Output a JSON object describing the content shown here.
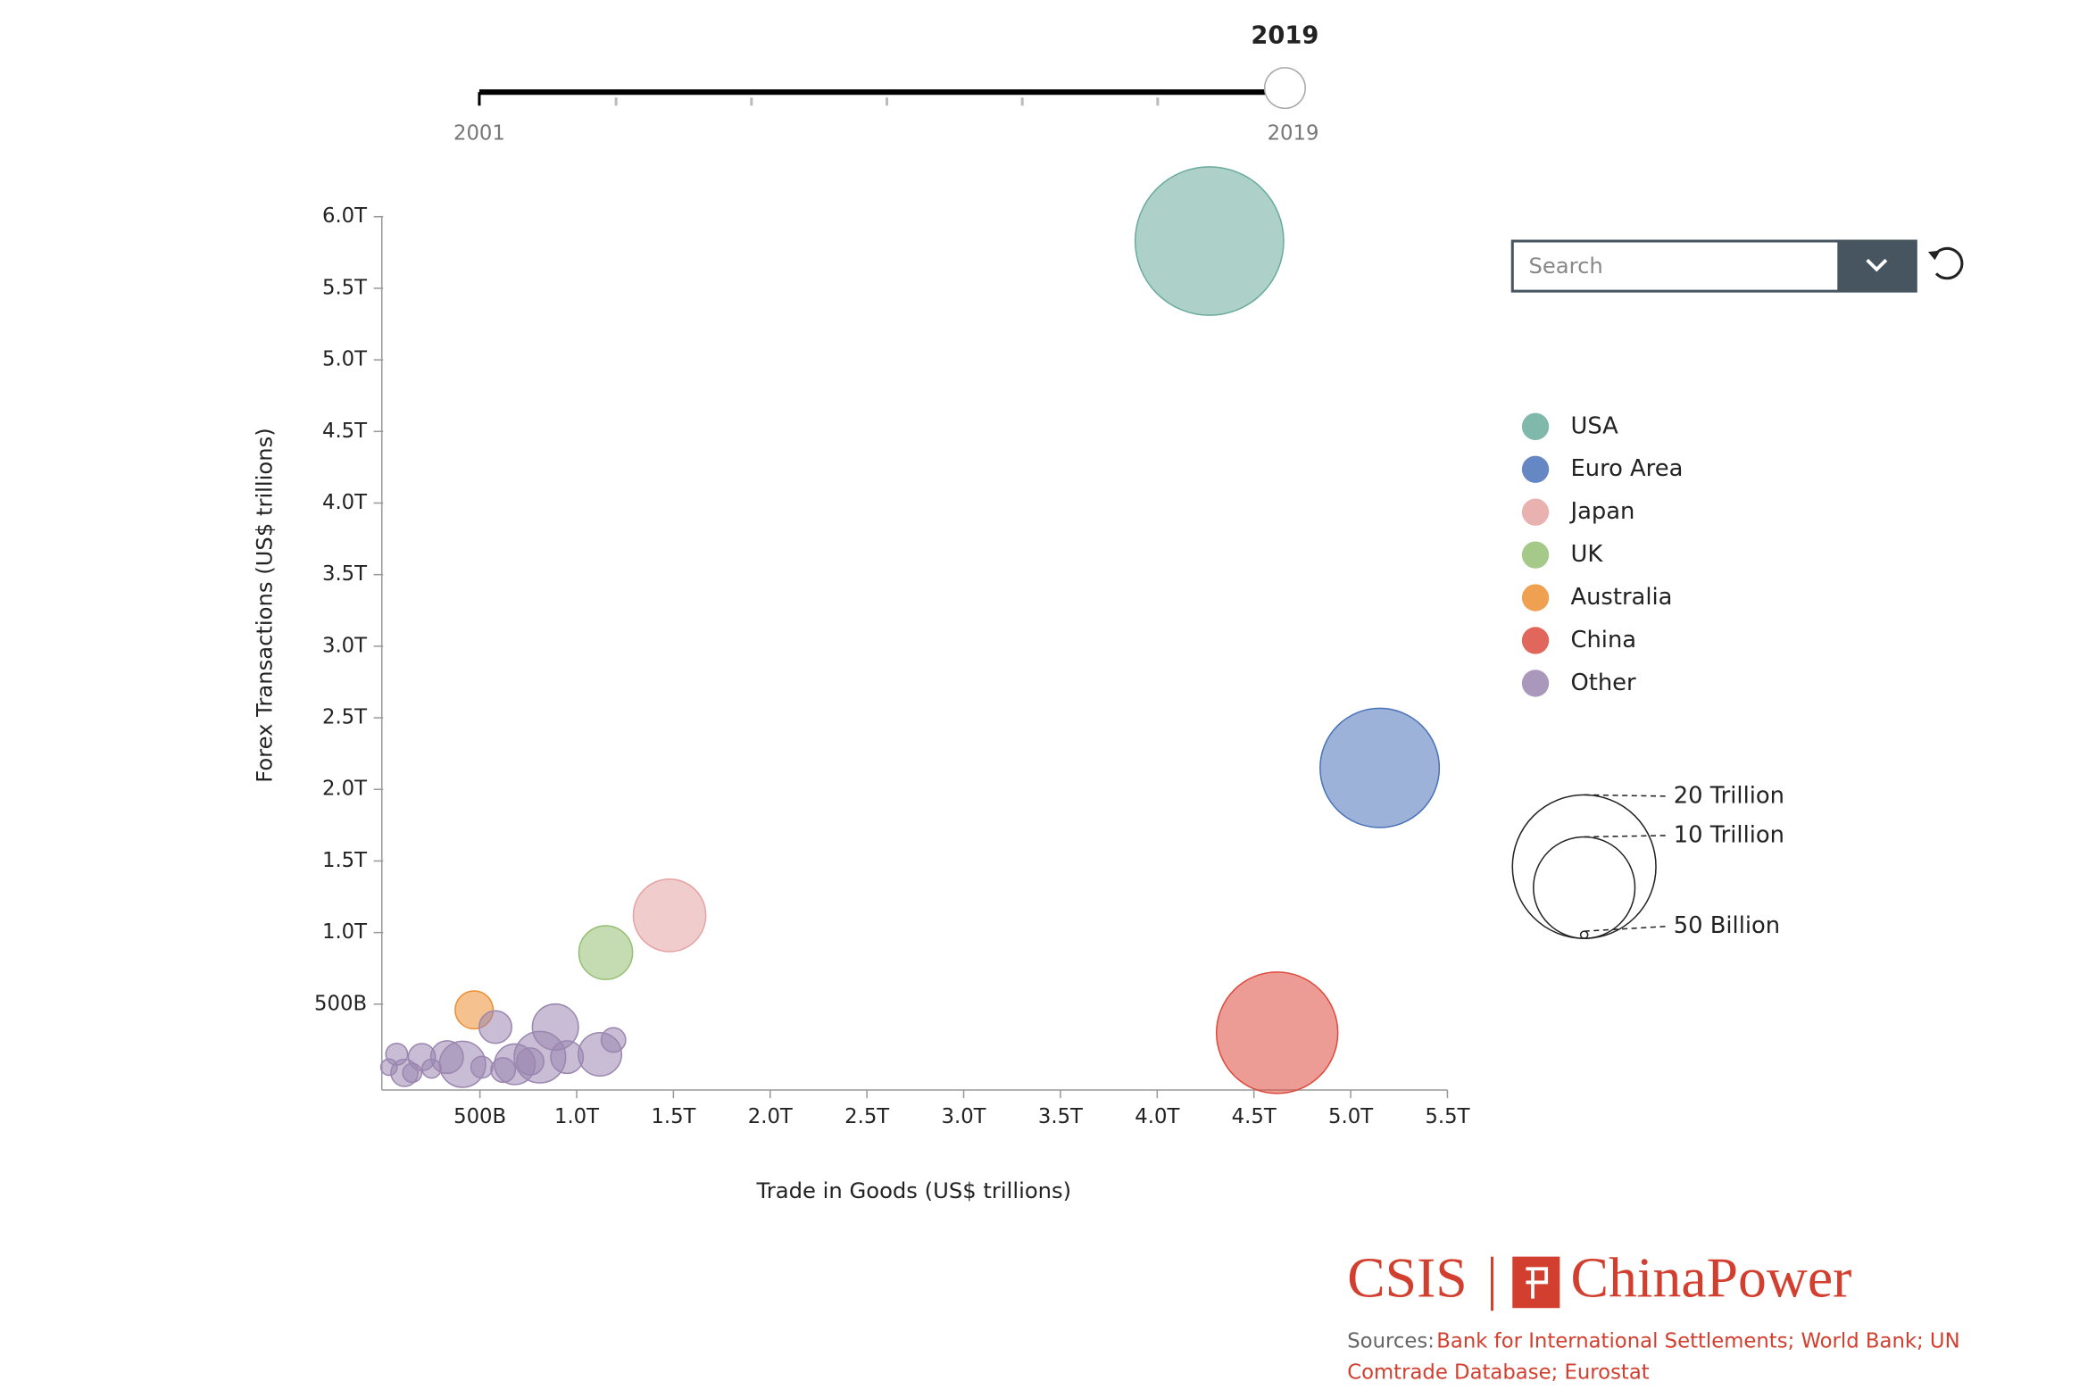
{
  "slider": {
    "current": "2019",
    "start": "2001",
    "end": "2019"
  },
  "search": {
    "placeholder": "Search"
  },
  "chart_data": {
    "type": "scatter",
    "x_label": "Trade in Goods (US$ trillions)",
    "y_label": "Forex Transactions (US$ trillions)",
    "xlim": [
      0,
      5.5
    ],
    "ylim": [
      -0.1,
      6.0
    ],
    "xticks": [
      {
        "value": 0.5,
        "label": "500B"
      },
      {
        "value": 1.0,
        "label": "1.0T"
      },
      {
        "value": 1.5,
        "label": "1.5T"
      },
      {
        "value": 2.0,
        "label": "2.0T"
      },
      {
        "value": 2.5,
        "label": "2.5T"
      },
      {
        "value": 3.0,
        "label": "3.0T"
      },
      {
        "value": 3.5,
        "label": "3.5T"
      },
      {
        "value": 4.0,
        "label": "4.0T"
      },
      {
        "value": 4.5,
        "label": "4.5T"
      },
      {
        "value": 5.0,
        "label": "5.0T"
      },
      {
        "value": 5.5,
        "label": "5.5T"
      }
    ],
    "yticks": [
      {
        "value": 0.5,
        "label": "500B"
      },
      {
        "value": 1.0,
        "label": "1.0T"
      },
      {
        "value": 1.5,
        "label": "1.5T"
      },
      {
        "value": 2.0,
        "label": "2.0T"
      },
      {
        "value": 2.5,
        "label": "2.5T"
      },
      {
        "value": 3.0,
        "label": "3.0T"
      },
      {
        "value": 3.5,
        "label": "3.5T"
      },
      {
        "value": 4.0,
        "label": "4.0T"
      },
      {
        "value": 4.5,
        "label": "4.5T"
      },
      {
        "value": 5.0,
        "label": "5.0T"
      },
      {
        "value": 5.5,
        "label": "5.5T"
      },
      {
        "value": 6.0,
        "label": "6.0T"
      }
    ],
    "series": [
      {
        "name": "USA",
        "color": "#6aab9c",
        "x": [
          4.27
        ],
        "values": [
          5.83
        ],
        "sizes": [
          21.4
        ]
      },
      {
        "name": "Euro Area",
        "color": "#4a72b8",
        "x": [
          5.15
        ],
        "values": [
          2.15
        ],
        "sizes": [
          13.8
        ]
      },
      {
        "name": "Japan",
        "color": "#e6a3a3",
        "x": [
          1.48
        ],
        "values": [
          1.12
        ],
        "sizes": [
          5.1
        ]
      },
      {
        "name": "UK",
        "color": "#95bf74",
        "x": [
          1.15
        ],
        "values": [
          0.86
        ],
        "sizes": [
          2.8
        ]
      },
      {
        "name": "Australia",
        "color": "#ec8f33",
        "x": [
          0.47
        ],
        "values": [
          0.46
        ],
        "sizes": [
          1.4
        ]
      },
      {
        "name": "China",
        "color": "#dc4b3e",
        "x": [
          4.62
        ],
        "values": [
          0.3
        ],
        "sizes": [
          14.3
        ]
      },
      {
        "name": "Other",
        "color": "#9b86b0",
        "x": [
          0.89,
          1.12,
          0.58,
          1.19,
          0.81,
          0.68,
          0.41,
          0.33,
          0.2,
          0.07,
          0.11,
          0.03,
          0.62,
          0.51,
          0.95,
          0.76,
          0.25,
          0.15
        ],
        "values": [
          0.34,
          0.15,
          0.34,
          0.25,
          0.13,
          0.08,
          0.08,
          0.13,
          0.13,
          0.15,
          0.02,
          0.06,
          0.04,
          0.06,
          0.13,
          0.1,
          0.05,
          0.02
        ],
        "sizes": [
          2.06,
          1.82,
          1.03,
          0.58,
          2.57,
          1.6,
          2.06,
          1.03,
          0.71,
          0.46,
          0.71,
          0.26,
          0.58,
          0.46,
          1.03,
          0.71,
          0.35,
          0.35
        ]
      }
    ],
    "size_legend": [
      {
        "value": 20,
        "label": "20 Trillion"
      },
      {
        "value": 10,
        "label": "10 Trillion"
      },
      {
        "value": 0.05,
        "label": "50 Billion"
      }
    ]
  },
  "footer": {
    "logo_left": "CSIS",
    "logo_right": "ChinaPower",
    "sources_label": "Sources:",
    "sources_line1": "Bank for International Settlements; World Bank; UN",
    "sources_line2": "Comtrade Database; Eurostat"
  }
}
